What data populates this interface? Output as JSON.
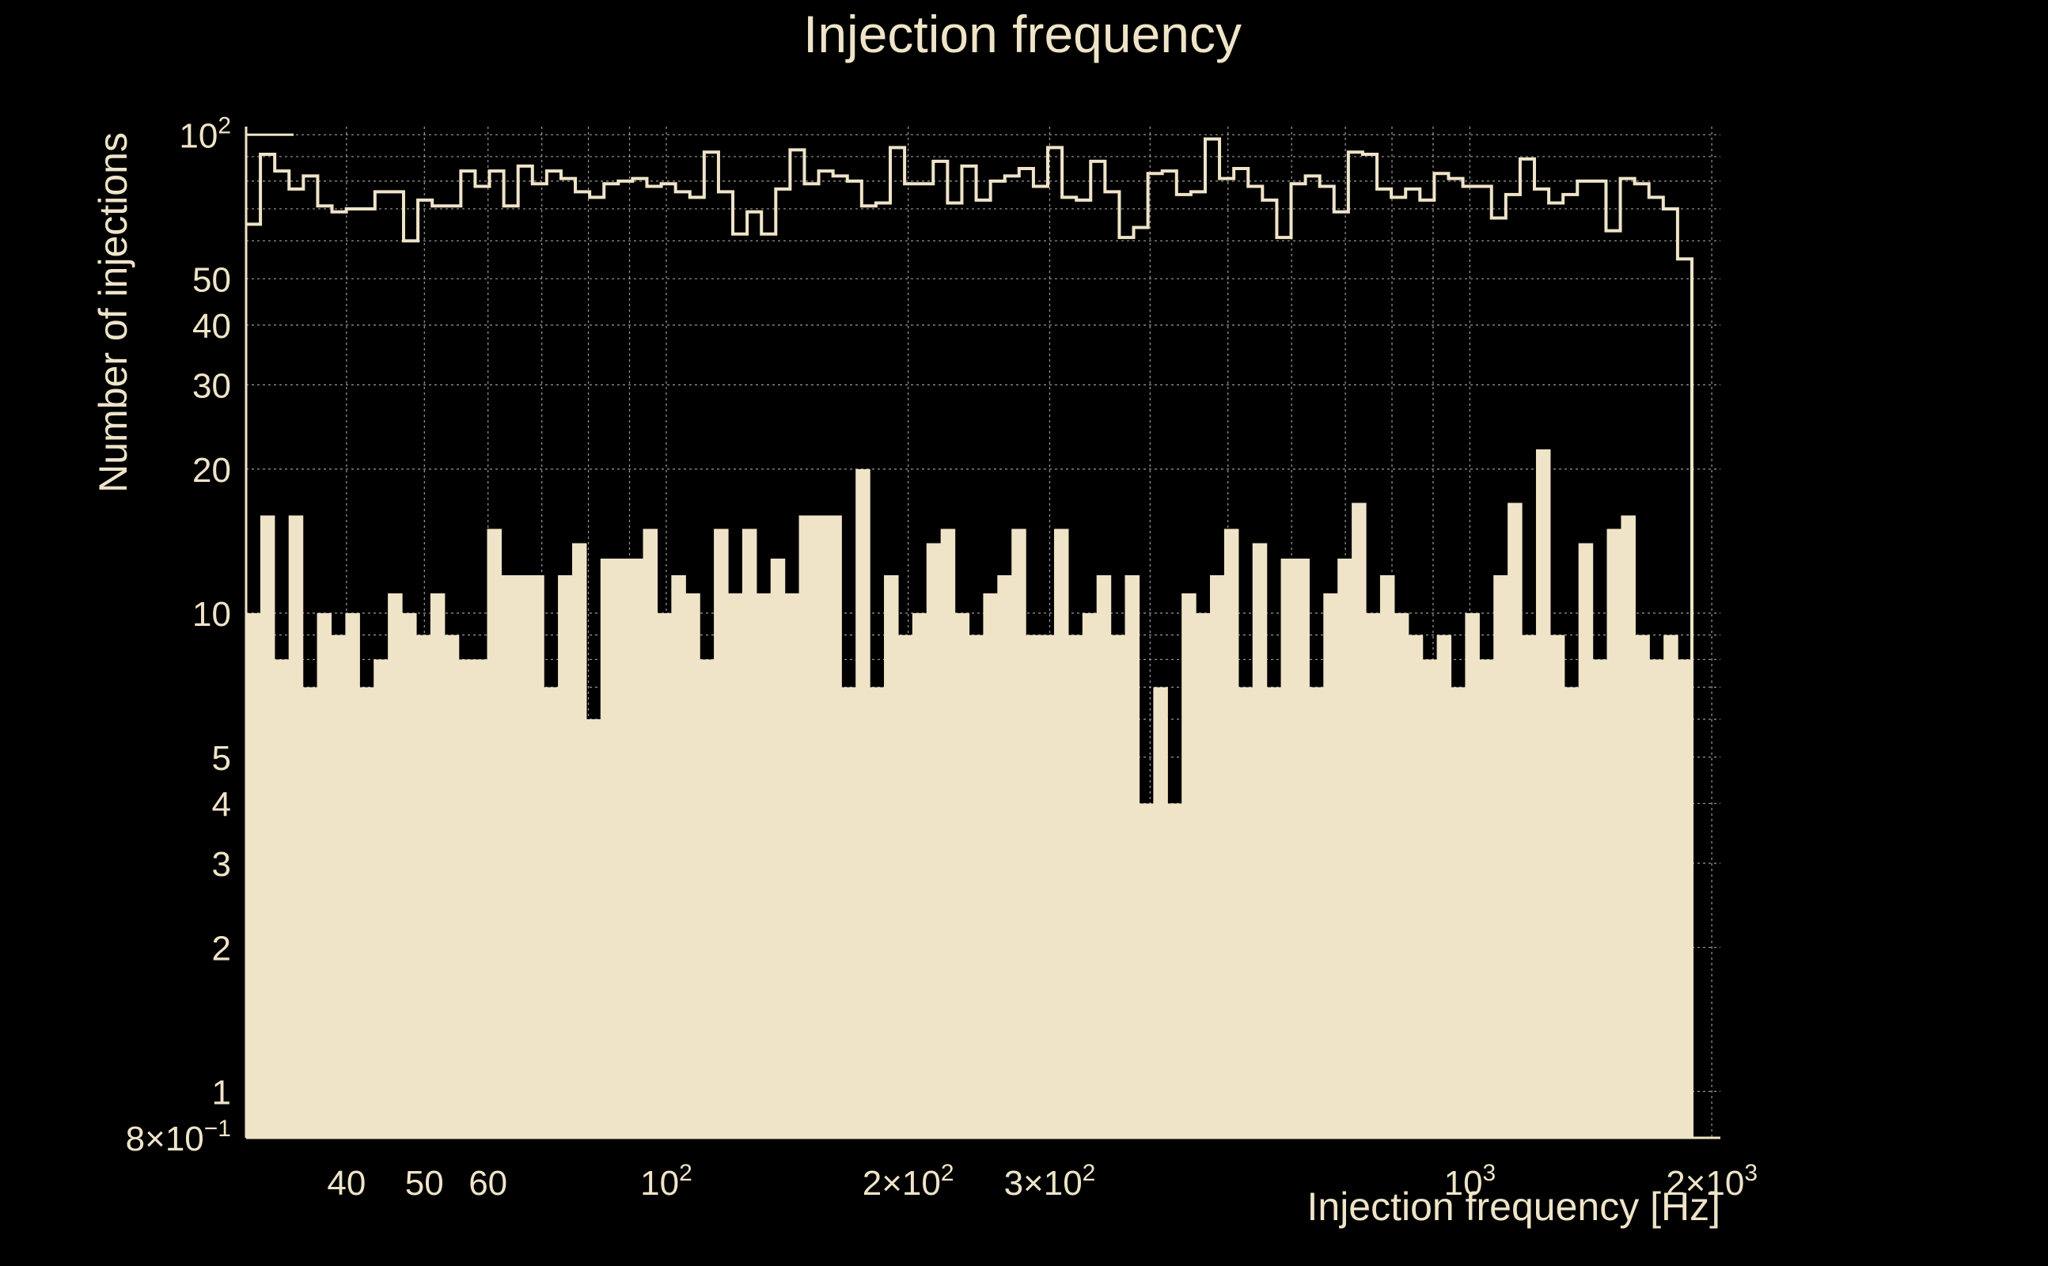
{
  "chart_data": {
    "type": "bar",
    "title": "Injection frequency",
    "xlabel": "Injection frequency [Hz]",
    "ylabel": "Number of injections",
    "x_scale": "log",
    "y_scale": "log",
    "xlim": [
      30,
      2050
    ],
    "ylim": [
      0.8,
      104
    ],
    "grid": true,
    "colors": {
      "background": "#000000",
      "fill": "#efe4c8",
      "grid": "#9a9a9a"
    },
    "x_ticks": [
      {
        "value": 40,
        "label": "40"
      },
      {
        "value": 50,
        "label": "50"
      },
      {
        "value": 60,
        "label": "60"
      },
      {
        "value": 100,
        "label": "10",
        "exp": "2"
      },
      {
        "value": 200,
        "label": "2×10",
        "exp": "2"
      },
      {
        "value": 300,
        "label": "3×10",
        "exp": "2"
      },
      {
        "value": 1000,
        "label": "10",
        "exp": "3"
      },
      {
        "value": 2000,
        "label": "2×10",
        "exp": "3"
      }
    ],
    "y_ticks": [
      {
        "value": 0.8,
        "label": "8×10",
        "exp": "−1"
      },
      {
        "value": 1,
        "label": "1"
      },
      {
        "value": 2,
        "label": "2"
      },
      {
        "value": 3,
        "label": "3"
      },
      {
        "value": 4,
        "label": "4"
      },
      {
        "value": 5,
        "label": "5"
      },
      {
        "value": 10,
        "label": "10"
      },
      {
        "value": 20,
        "label": "20"
      },
      {
        "value": 30,
        "label": "30"
      },
      {
        "value": 40,
        "label": "40"
      },
      {
        "value": 50,
        "label": "50"
      },
      {
        "value": 100,
        "label": "10",
        "exp": "2"
      }
    ],
    "minor_x_grid": [
      70,
      80,
      90,
      400,
      500,
      600,
      700,
      800,
      900
    ],
    "minor_y_grid": [
      6,
      7,
      8,
      9,
      60,
      70,
      80,
      90
    ],
    "series": [
      {
        "style": "filled-bars",
        "values": [
          10,
          16,
          8,
          16,
          7,
          10,
          9,
          10,
          7,
          8,
          11,
          10,
          9,
          11,
          9,
          8,
          8,
          15,
          12,
          12,
          12,
          7,
          12,
          14,
          6,
          13,
          13,
          13,
          15,
          10,
          12,
          11,
          8,
          15,
          11,
          15,
          11,
          13,
          11,
          16,
          16,
          16,
          7,
          20,
          7,
          12,
          9,
          10,
          14,
          15,
          10,
          9,
          11,
          12,
          15,
          9,
          9,
          15,
          9,
          10,
          12,
          9,
          12,
          4,
          7,
          4,
          11,
          10,
          12,
          15,
          7,
          14,
          7,
          13,
          13,
          7,
          11,
          13,
          17,
          10,
          12,
          10,
          9,
          8,
          9,
          7,
          10,
          8,
          12,
          17,
          9,
          22,
          9,
          7,
          14,
          8,
          15,
          16,
          9,
          8,
          9,
          8
        ]
      },
      {
        "style": "step-outline",
        "values": [
          65,
          91,
          84,
          77,
          82,
          71,
          69,
          70,
          70,
          76,
          76,
          60,
          73,
          71,
          71,
          84,
          78,
          84,
          71,
          86,
          79,
          84,
          81,
          76,
          74,
          79,
          80,
          81,
          78,
          79,
          76,
          74,
          92,
          76,
          62,
          69,
          62,
          77,
          93,
          79,
          84,
          82,
          80,
          71,
          72,
          94,
          79,
          79,
          88,
          72,
          86,
          73,
          80,
          82,
          85,
          78,
          94,
          74,
          73,
          88,
          76,
          61,
          64,
          83,
          84,
          75,
          76,
          98,
          81,
          85,
          78,
          73,
          61,
          79,
          82,
          78,
          69,
          92,
          91,
          77,
          74,
          77,
          73,
          83,
          81,
          78,
          78,
          67,
          75,
          89,
          77,
          72,
          75,
          80,
          80,
          63,
          81,
          79,
          74,
          70,
          55
        ]
      }
    ]
  }
}
